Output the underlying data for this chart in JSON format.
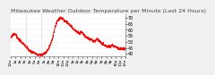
{
  "title": "Milwaukee Weather Outdoor Temperature per Minute (Last 24 Hours)",
  "background_color": "#f0f0f0",
  "plot_background": "#ffffff",
  "line_color": "#ff0000",
  "grid_color": "#aaaaaa",
  "vline_color": "#999999",
  "title_fontsize": 4.5,
  "tick_fontsize": 3.5,
  "ylim": [
    38,
    73
  ],
  "yticks": [
    40,
    45,
    50,
    55,
    60,
    65,
    70
  ],
  "ytick_labels": [
    "40",
    "45",
    "50",
    "55",
    "60",
    "65",
    "70"
  ],
  "num_points": 1440,
  "temperature_profile": [
    53,
    55,
    56,
    57,
    56,
    55,
    53,
    52,
    51,
    50,
    49,
    48,
    47,
    46,
    45,
    44,
    43,
    42,
    42,
    41,
    41,
    40,
    40,
    39,
    39,
    39,
    39,
    39,
    40,
    40,
    41,
    42,
    43,
    45,
    47,
    50,
    53,
    57,
    61,
    64,
    67,
    68,
    69,
    70,
    70,
    69,
    68,
    67,
    67,
    66,
    65,
    64,
    63,
    62,
    61,
    60,
    59,
    58,
    58,
    57,
    57,
    58,
    57,
    56,
    55,
    54,
    53,
    53,
    52,
    52,
    51,
    51,
    50,
    51,
    52,
    52,
    51,
    50,
    49,
    48,
    48,
    47,
    47,
    46,
    46,
    46,
    46,
    47,
    47,
    46,
    46,
    46,
    45,
    45,
    44,
    44,
    44,
    44,
    44,
    44
  ],
  "vline_positions": [
    0.133,
    0.266
  ],
  "num_xticks": 25,
  "xtick_labels": [
    "12a",
    "1a",
    "2a",
    "3a",
    "4a",
    "5a",
    "6a",
    "7a",
    "8a",
    "9a",
    "10a",
    "11a",
    "12p",
    "1p",
    "2p",
    "3p",
    "4p",
    "5p",
    "6p",
    "7p",
    "8p",
    "9p",
    "10p",
    "11p",
    "12a"
  ]
}
